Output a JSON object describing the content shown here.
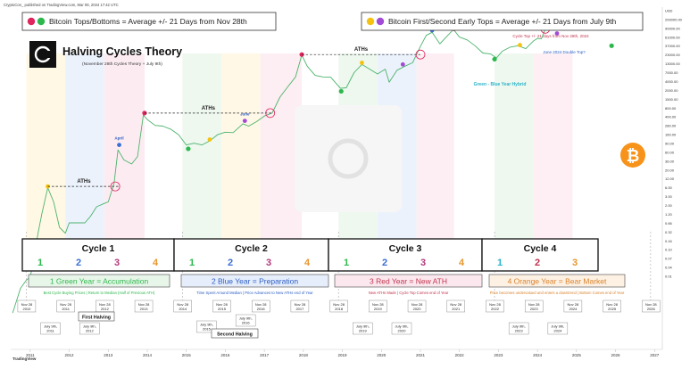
{
  "header_text": "CryptoCon_ published on TradingView.com, Mar 08, 2024 17:42 UTC",
  "footer_brand": "TradingView",
  "legend_left": {
    "text": "Bitcoin Tops/Bottoms = Average +/- 21 Days from Nov 28th",
    "colors": [
      "#e0245e",
      "#2db84d"
    ]
  },
  "legend_right": {
    "text": "Bitcoin  First/Second Early Tops = Average +/- 21 Days from July 9th",
    "colors": [
      "#f5c211",
      "#a24bd6"
    ]
  },
  "title": "Halving Cycles Theory",
  "subtitle": "(November 28th Cycles Theory + July 9th)",
  "price_axis": [
    "USD",
    "200000.00",
    "90000.00",
    "61000.00",
    "37000.00",
    "23000.00",
    "13000.00",
    "7000.00",
    "4000.00",
    "2000.00",
    "1500.00",
    "800.00",
    "400.00",
    "280.00",
    "160.00",
    "90.00",
    "60.00",
    "36.00",
    "20.00",
    "12.00",
    "6.00",
    "3.00",
    "2.00",
    "1.20",
    "0.66",
    "0.32",
    "0.16",
    "0.10",
    "0.07",
    "0.04",
    "0.01"
  ],
  "year_axis": [
    "2011",
    "2012",
    "2013",
    "2014",
    "2015",
    "2016",
    "2017",
    "2018",
    "2019",
    "2020",
    "2021",
    "2022",
    "2023",
    "2024",
    "2025",
    "2026",
    "2027"
  ],
  "annotations": {
    "aths": "ATHs",
    "april": "April",
    "june": "June",
    "cycle_top_note": "Cycle Top +/- 21 days from Nov 28th, 2024",
    "double_top": "June 2024 Double Top?",
    "hybrid": "Green - Blue Year Hybrid"
  },
  "cycles": [
    {
      "name": "Cycle 1",
      "numbers": [
        "1",
        "2",
        "3",
        "4"
      ]
    },
    {
      "name": "Cycle 2",
      "numbers": [
        "1",
        "2",
        "3",
        "4"
      ]
    },
    {
      "name": "Cycle 3",
      "numbers": [
        "1",
        "2",
        "3",
        "4"
      ]
    },
    {
      "name": "Cycle 4",
      "numbers": [
        "1",
        "2",
        "3"
      ]
    }
  ],
  "number_colors": [
    "#2db84d",
    "#3b6fd6",
    "#b33a7a",
    "#e8962e"
  ],
  "cycle4_colors": [
    "#2ab3c9",
    "#c2334e",
    "#e8962e"
  ],
  "year_types": [
    {
      "label": "1 Green Year = Accumulation",
      "desc": "Best Cycle Buying Prices | Return to Median (Half of Previous ATH)",
      "color": "#2db84d",
      "bg": "#e8f6ea"
    },
    {
      "label": "2 Blue Year = Preparation",
      "desc": "Time Spent Around Median | Price Advances to New ATHs end of Year",
      "color": "#2a5cc4",
      "bg": "#e6eefb"
    },
    {
      "label": "3 Red Year = New ATH",
      "desc": "New ATHs Made | Cycle Top Comes end of Year",
      "color": "#c2334e",
      "bg": "#fbe8ee"
    },
    {
      "label": "4 Orange Year = Bear Market",
      "desc": "Price becomes undervalued and enters a downtrend | Bottom Comes end of Year",
      "color": "#d9822b",
      "bg": "#fdf1e4"
    }
  ],
  "date_labels_nov28": [
    "Nov 28 2010",
    "Nov 28 2011",
    "Nov 28 2012",
    "Nov 28 2013",
    "Nov 28 2014",
    "Nov 28 2015",
    "Nov 28 2016",
    "Nov 28 2017",
    "Nov 28 2018",
    "Nov 28 2019",
    "Nov 28 2020",
    "Nov 28 2021",
    "Nov 28 2022",
    "Nov 28 2023",
    "Nov 28 2024",
    "Nov 28 2025",
    "Nov 28 2026"
  ],
  "date_labels_jul9": [
    "July 9th, 2011",
    "July 9th, 2012",
    "July 9th, 2015",
    "July 9th, 2016",
    "July 9th, 2019",
    "July 9th, 2020",
    "July 9th, 2023",
    "July 9th, 2024"
  ],
  "halvings": [
    "First Halving",
    "Second Halving"
  ],
  "chart_data": {
    "type": "line",
    "title": "Halving Cycles Theory",
    "yscale": "log",
    "ylabel": "USD",
    "ylim": [
      0.01,
      200000
    ],
    "xlim": [
      2010.5,
      2027.2
    ],
    "x": [
      2010.55,
      2010.75,
      2010.9,
      2011.0,
      2011.1,
      2011.2,
      2011.3,
      2011.45,
      2011.6,
      2011.75,
      2011.9,
      2012.0,
      2012.2,
      2012.4,
      2012.55,
      2012.7,
      2012.9,
      2013.0,
      2013.15,
      2013.25,
      2013.4,
      2013.6,
      2013.75,
      2013.9,
      2014.0,
      2014.2,
      2014.4,
      2014.6,
      2014.8,
      2015.0,
      2015.2,
      2015.4,
      2015.6,
      2015.8,
      2016.0,
      2016.2,
      2016.45,
      2016.6,
      2016.8,
      2017.0,
      2017.2,
      2017.4,
      2017.6,
      2017.8,
      2017.96,
      2018.1,
      2018.3,
      2018.5,
      2018.7,
      2018.95,
      2019.1,
      2019.3,
      2019.5,
      2019.7,
      2019.9,
      2020.1,
      2020.2,
      2020.4,
      2020.6,
      2020.8,
      2021.0,
      2021.15,
      2021.3,
      2021.5,
      2021.65,
      2021.85,
      2022.0,
      2022.2,
      2022.4,
      2022.6,
      2022.8,
      2022.95,
      2023.1,
      2023.3,
      2023.5,
      2023.7,
      2023.9,
      2024.0,
      2024.1,
      2024.2
    ],
    "y": [
      0.06,
      0.2,
      0.3,
      0.35,
      0.9,
      3,
      8,
      28,
      14,
      4,
      3,
      5,
      5,
      5,
      7,
      11,
      13,
      14,
      35,
      180,
      110,
      90,
      130,
      1000,
      800,
      600,
      580,
      500,
      380,
      230,
      250,
      230,
      280,
      380,
      430,
      420,
      650,
      580,
      720,
      950,
      1100,
      2400,
      4000,
      6500,
      19000,
      11000,
      7000,
      6500,
      6400,
      3700,
      3800,
      8000,
      12000,
      9500,
      7500,
      9500,
      5000,
      9000,
      11000,
      13000,
      29000,
      50000,
      58000,
      33000,
      45000,
      67000,
      46000,
      40000,
      30000,
      21000,
      20000,
      16500,
      23000,
      28000,
      30000,
      26000,
      38000,
      43000,
      42000,
      68000
    ],
    "series": [
      {
        "name": "BTC/USD",
        "x_ref": "x",
        "y_ref": "y"
      }
    ],
    "tops_bottoms": [
      {
        "x": 2013.93,
        "y": 1100,
        "color": "#e0245e"
      },
      {
        "x": 2015.05,
        "y": 190,
        "color": "#2db84d"
      },
      {
        "x": 2017.96,
        "y": 19500,
        "color": "#e0245e"
      },
      {
        "x": 2018.97,
        "y": 3200,
        "color": "#2db84d"
      },
      {
        "x": 2021.86,
        "y": 69000,
        "color": "#e0245e"
      },
      {
        "x": 2022.9,
        "y": 15500,
        "color": "#2db84d"
      },
      {
        "x": 2024.9,
        "y": 110000,
        "color": "#e0245e"
      },
      {
        "x": 2025.9,
        "y": 30000,
        "color": "#2db84d"
      }
    ],
    "early_tops": [
      {
        "x": 2011.45,
        "y": 30,
        "color": "#f5c211"
      },
      {
        "x": 2013.28,
        "y": 230,
        "color": "#3b6fd6"
      },
      {
        "x": 2015.6,
        "y": 300,
        "color": "#f5c211"
      },
      {
        "x": 2016.5,
        "y": 750,
        "color": "#a24bd6"
      },
      {
        "x": 2019.5,
        "y": 13000,
        "color": "#f5c211"
      },
      {
        "x": 2020.55,
        "y": 12000,
        "color": "#a24bd6"
      },
      {
        "x": 2021.3,
        "y": 64000,
        "color": "#3b6fd6"
      },
      {
        "x": 2023.55,
        "y": 31000,
        "color": "#f5c211"
      },
      {
        "x": 2024.5,
        "y": 55000,
        "color": "#a24bd6"
      }
    ],
    "cycle_boundaries": [
      2010.9,
      2014.9,
      2018.9,
      2022.9,
      2026.9
    ]
  }
}
